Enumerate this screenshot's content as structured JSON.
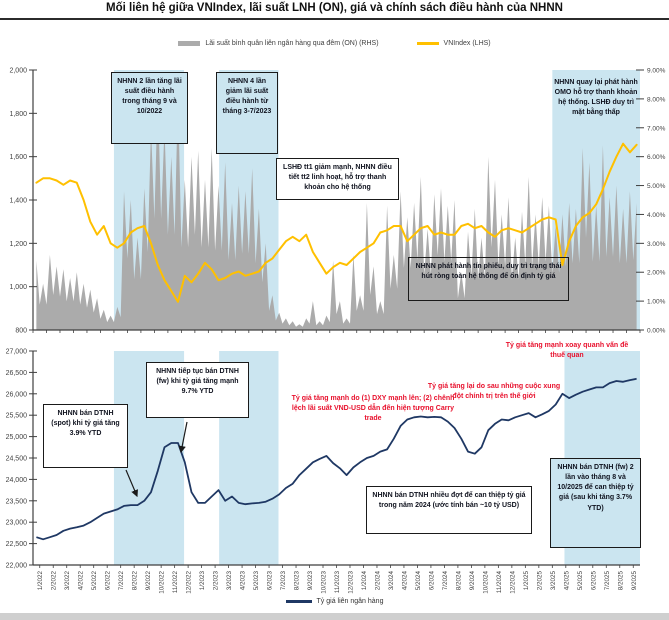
{
  "header": {
    "title": "Mối liên hệ giữa VNIndex, lãi suất LNH (ON), giá và chính sách điều hành của NHNN"
  },
  "colors": {
    "on_rate_gray": "#ababab",
    "vnindex_yellow": "#FFC000",
    "fx_navy": "#1F3864",
    "highlight_band": "#CBE5F0",
    "annotation_red": "#e8112d",
    "axis": "#3f3f3f"
  },
  "top_legend": [
    {
      "label": "Lãi suất bình quân liên ngân hàng qua đêm (ON) (RHS)",
      "color": "#ababab",
      "style": "bar"
    },
    {
      "label": "VNIndex (LHS)",
      "color": "#FFC000",
      "style": "line"
    }
  ],
  "bottom_legend": [
    {
      "label": "Tỷ giá liên ngân hàng",
      "color": "#1F3864",
      "style": "line"
    }
  ],
  "chart_data": [
    {
      "type": "area",
      "title": "VNIndex vs interbank overnight rate",
      "x": [
        "1/2022",
        "2/2022",
        "3/2022",
        "4/2022",
        "5/2022",
        "6/2022",
        "7/2022",
        "8/2022",
        "9/2022",
        "10/2022",
        "11/2022",
        "12/2022",
        "1/2023",
        "2/2023",
        "3/2023",
        "4/2023",
        "5/2023",
        "6/2023",
        "7/2023",
        "8/2023",
        "9/2023",
        "10/2023",
        "11/2023",
        "12/2023",
        "1/2024",
        "2/2024",
        "3/2024",
        "4/2024",
        "5/2024",
        "6/2024",
        "7/2024",
        "8/2024",
        "9/2024",
        "10/2024",
        "11/2024",
        "12/2024",
        "1/2025",
        "2/2025",
        "3/2025",
        "4/2025",
        "5/2025",
        "6/2025",
        "7/2025",
        "8/2025",
        "9/2025"
      ],
      "x_points_per_month": 2,
      "left_axis": {
        "min": 800,
        "max": 2000,
        "tick_labels": [
          "2,000",
          "1,800",
          "1,600",
          "1,400",
          "1,200",
          "1,000",
          "800"
        ]
      },
      "right_axis": {
        "min": 0,
        "max": 9,
        "tick_labels": [
          "9.00%",
          "8.00%",
          "7.00%",
          "6.00%",
          "5.00%",
          "4.00%",
          "3.00%",
          "2.00%",
          "1.00%",
          "0.00%"
        ]
      },
      "highlight_bands_months": [
        [
          6.0,
          11.2
        ],
        [
          13.8,
          18.2
        ],
        [
          38.5,
          45
        ]
      ],
      "series": [
        {
          "name": "Lãi suất bình quân liên ngân hàng qua đêm (ON) (RHS)",
          "axis": "right",
          "type": "area",
          "color": "#ababab",
          "values": [
            2.4,
            1.6,
            2.6,
            2.2,
            2.1,
            1.8,
            2.0,
            1.6,
            1.4,
            1.1,
            0.7,
            0.5,
            0.8,
            4.8,
            4.5,
            3.2,
            4.9,
            7.0,
            8.3,
            7.0,
            6.0,
            8.2,
            5.2,
            6.0,
            6.2,
            5.2,
            6.3,
            5.0,
            5.8,
            4.4,
            5.0,
            4.8,
            5.6,
            4.2,
            3.0,
            1.2,
            0.6,
            0.4,
            0.3,
            0.2,
            0.4,
            1.0,
            0.3,
            0.5,
            2.4,
            1.0,
            0.4,
            2.6,
            1.2,
            4.4,
            2.2,
            1.0,
            4.3,
            2.6,
            4.8,
            3.9,
            4.4,
            5.3,
            3.5,
            4.7,
            4.9,
            4.3,
            4.5,
            2.0,
            3.4,
            4.2,
            3.2,
            6.0,
            5.2,
            4.0,
            4.6,
            3.2,
            4.1,
            5.3,
            4.0,
            4.6,
            4.3,
            3.6,
            4.0,
            4.4,
            4.2,
            6.3,
            5.8,
            4.3,
            6.4,
            4.6,
            5.0,
            4.2,
            4.8,
            4.4
          ]
        },
        {
          "name": "VNIndex (LHS)",
          "axis": "left",
          "type": "line",
          "color": "#FFC000",
          "values": [
            1480,
            1500,
            1500,
            1490,
            1470,
            1490,
            1480,
            1400,
            1300,
            1240,
            1280,
            1200,
            1180,
            1200,
            1250,
            1270,
            1280,
            1200,
            1100,
            1030,
            980,
            930,
            1050,
            1020,
            1060,
            1110,
            1080,
            1030,
            1040,
            1060,
            1070,
            1050,
            1060,
            1070,
            1110,
            1130,
            1170,
            1210,
            1230,
            1210,
            1240,
            1160,
            1110,
            1060,
            1090,
            1110,
            1100,
            1130,
            1160,
            1180,
            1200,
            1250,
            1260,
            1280,
            1280,
            1210,
            1240,
            1270,
            1280,
            1240,
            1250,
            1240,
            1240,
            1280,
            1290,
            1270,
            1280,
            1250,
            1230,
            1260,
            1270,
            1260,
            1250,
            1270,
            1290,
            1310,
            1320,
            1310,
            1100,
            1210,
            1280,
            1320,
            1340,
            1380,
            1450,
            1530,
            1600,
            1660,
            1620,
            1655
          ]
        }
      ],
      "annotations": [
        {
          "text": "NHNN 2 lần tăng lãi suất điều hành trong tháng 9 và 10/2022"
        },
        {
          "text": "NHNN 4 lần giảm lãi suất điều hành từ tháng 3-7/2023"
        },
        {
          "text": "LSHĐ tt1 giảm mạnh, NHNN điều tiết tt2 linh hoạt, hỗ trợ thanh khoản cho hệ thống"
        },
        {
          "text": "NHNN quay lại phát hành OMO hỗ trợ thanh khoản hệ thống. LSHĐ duy trì mặt bằng thấp"
        },
        {
          "text": "NHNN phát hành tín phiếu, duy trì trạng thái hút ròng toàn hệ thống để ổn định tỷ giá"
        }
      ]
    },
    {
      "type": "line",
      "title": "Tỷ giá liên ngân hàng",
      "x": [
        "1/2022",
        "2/2022",
        "3/2022",
        "4/2022",
        "5/2022",
        "6/2022",
        "7/2022",
        "8/2022",
        "9/2022",
        "10/2022",
        "11/2022",
        "12/2022",
        "1/2023",
        "2/2023",
        "3/2023",
        "4/2023",
        "5/2023",
        "6/2023",
        "7/2023",
        "8/2023",
        "9/2023",
        "10/2023",
        "11/2023",
        "12/2023",
        "1/2024",
        "2/2024",
        "3/2024",
        "4/2024",
        "5/2024",
        "6/2024",
        "7/2024",
        "8/2024",
        "9/2024",
        "10/2024",
        "11/2024",
        "12/2024",
        "1/2025",
        "2/2025",
        "3/2025",
        "4/2025",
        "5/2025",
        "6/2025",
        "7/2025",
        "8/2025",
        "9/2025"
      ],
      "x_points_per_month": 2,
      "left_axis": {
        "min": 22000,
        "max": 27000,
        "tick_labels": [
          "27,000",
          "26,500",
          "26,000",
          "25,500",
          "25,000",
          "24,500",
          "24,000",
          "23,500",
          "23,000",
          "22,500",
          "22,000"
        ]
      },
      "highlight_bands_months": [
        [
          6.0,
          11.2
        ],
        [
          13.8,
          18.2
        ],
        [
          39.4,
          45
        ]
      ],
      "series": [
        {
          "name": "Tỷ giá liên ngân hàng",
          "axis": "left",
          "type": "line",
          "color": "#1F3864",
          "values": [
            22650,
            22600,
            22650,
            22700,
            22800,
            22850,
            22880,
            22920,
            23000,
            23100,
            23200,
            23250,
            23300,
            23380,
            23400,
            23400,
            23500,
            23700,
            24200,
            24750,
            24850,
            24850,
            24400,
            23700,
            23450,
            23450,
            23600,
            23750,
            23500,
            23600,
            23450,
            23420,
            23440,
            23450,
            23480,
            23550,
            23650,
            23800,
            23900,
            24100,
            24250,
            24400,
            24480,
            24550,
            24380,
            24260,
            24100,
            24280,
            24400,
            24500,
            24550,
            24650,
            24700,
            24950,
            25250,
            25400,
            25450,
            25470,
            25450,
            25460,
            25450,
            25350,
            25200,
            24950,
            24650,
            24600,
            24750,
            25150,
            25300,
            25400,
            25380,
            25450,
            25500,
            25550,
            25450,
            25520,
            25600,
            25750,
            26000,
            25900,
            25980,
            26050,
            26100,
            26150,
            26150,
            26250,
            26300,
            26280,
            26320,
            26350
          ]
        }
      ],
      "annotations": [
        {
          "text": "NHNN bán DTNH (spot) khi tỷ giá tăng 3.9% YTD"
        },
        {
          "text": "NHNN tiếp tục bán DTNH (fw) khi tỷ giá tăng mạnh 9.7% YTD"
        },
        {
          "text": "Tỷ giá tăng mạnh do (1) DXY mạnh lên; (2) chênh lệch lãi suất VND-USD dẫn đến hiện tượng Carry trade"
        },
        {
          "text": "Tỷ giá tăng lại do sau những cuộc  xung đột chính trị trên thế giới"
        },
        {
          "text": "Tỷ giá tăng mạnh xoay quanh vấn đề thuế quan"
        },
        {
          "text": "NHNN bán DTNH nhiều đợt để can thiệp tỷ giá trong năm 2024 (ước tính bán ~10 tỷ USD)"
        },
        {
          "text": "NHNN bán DTNH (fw) 2 lần vào tháng 8 và 10/2025 để can thiệp tỷ giá (sau khi tăng  3.7% YTD)"
        }
      ]
    }
  ]
}
